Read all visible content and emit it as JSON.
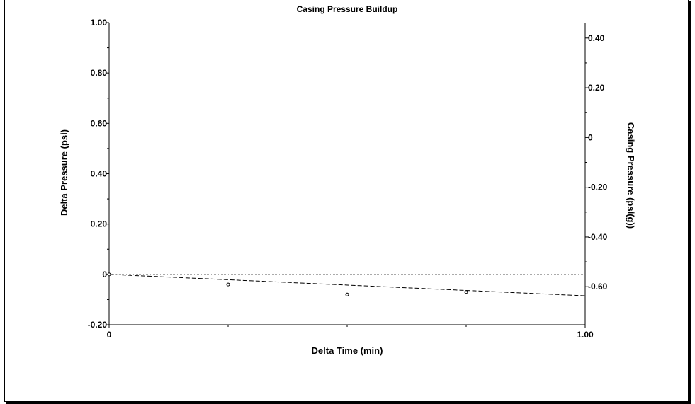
{
  "chart_data": {
    "type": "scatter",
    "title": "Casing Pressure Buildup",
    "xlabel": "Delta Time (min)",
    "ylabel": "Delta Pressure (psi)",
    "y2label": "Casing Pressure (psi(g))",
    "xlim": [
      0,
      1.0
    ],
    "ylim": [
      -0.2,
      1.0
    ],
    "y2lim": [
      -0.753,
      0.462
    ],
    "x_ticks": [
      0,
      1.0
    ],
    "x_tick_labels": [
      "0",
      "1.00"
    ],
    "y_ticks": [
      -0.2,
      0,
      0.2,
      0.4,
      0.6,
      0.8,
      1.0
    ],
    "y_tick_labels": [
      "-0.20",
      "0",
      "0.20",
      "0.40",
      "0.60",
      "0.80",
      "1.00"
    ],
    "y2_ticks": [
      -0.6,
      -0.4,
      -0.2,
      0,
      0.2,
      0.4
    ],
    "y2_tick_labels": [
      "-0.60",
      "-0.40",
      "-0.20",
      "0",
      "0.20",
      "0.40"
    ],
    "grid": false,
    "series": [
      {
        "values": [
          {
            "x": 0,
            "y": 0
          },
          {
            "x": 0.25,
            "y": -0.04
          },
          {
            "x": 0.5,
            "y": -0.08
          },
          {
            "x": 0.75,
            "y": -0.07
          }
        ]
      }
    ],
    "reference_lines": [
      {
        "style": "dotted",
        "y": 0
      },
      {
        "style": "dashed",
        "from": {
          "x": 0,
          "y": 0
        },
        "to": {
          "x": 1.0,
          "y": -0.085
        }
      }
    ],
    "colors": {
      "axis": "#000000",
      "markers": "#000000"
    }
  }
}
